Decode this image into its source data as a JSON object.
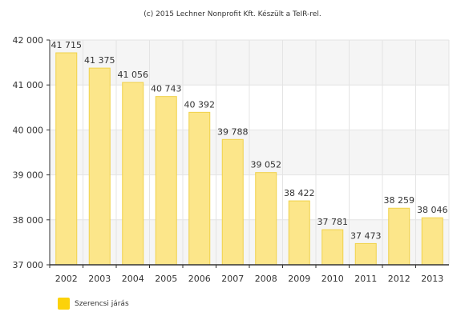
{
  "credit": "(c) 2015 Lechner Nonprofit Kft. Készült a TeIR-rel.",
  "colors": {
    "bar_fill": "#fce68a",
    "bar_stroke": "#f0d24a",
    "legend_swatch": "#fcd20a",
    "band": "#f5f5f5",
    "grid": "#e4e4e4",
    "axis": "#333333",
    "text": "#333333"
  },
  "chart_data": {
    "type": "bar",
    "categories": [
      "2002",
      "2003",
      "2004",
      "2005",
      "2006",
      "2007",
      "2008",
      "2009",
      "2010",
      "2011",
      "2012",
      "2013"
    ],
    "series": [
      {
        "name": "Szerencsi járás",
        "values": [
          41715,
          41375,
          41056,
          40743,
          40392,
          39788,
          39052,
          38422,
          37781,
          37473,
          38259,
          38046
        ],
        "labels": [
          "41 715",
          "41 375",
          "41 056",
          "40 743",
          "40 392",
          "39 788",
          "39 052",
          "38 422",
          "37 781",
          "37 473",
          "38 259",
          "38 046"
        ]
      }
    ],
    "ylim": [
      37000,
      42000
    ],
    "yticks": [
      37000,
      38000,
      39000,
      40000,
      41000,
      42000
    ],
    "ytick_labels": [
      "37 000",
      "38 000",
      "39 000",
      "40 000",
      "41 000",
      "42 000"
    ],
    "grid": true,
    "legend": "bottom-left",
    "title": "",
    "xlabel": "",
    "ylabel": ""
  }
}
